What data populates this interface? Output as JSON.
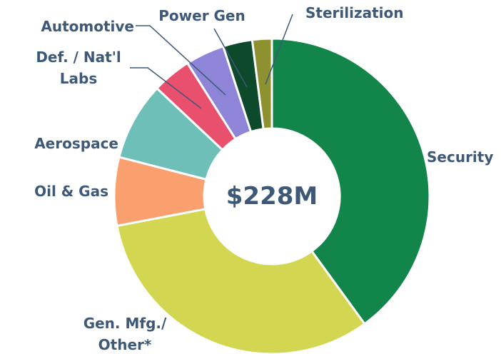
{
  "chart_data": {
    "type": "donut",
    "center_label": "$228M",
    "categories": [
      "Security",
      "Gen. Mfg./\nOther*",
      "Oil & Gas",
      "Aerospace",
      "Def. / Nat'l\nLabs",
      "Automotive",
      "Power Gen",
      "Sterilization"
    ],
    "values": [
      40,
      32,
      7,
      8,
      4,
      4,
      3,
      2
    ],
    "colors": [
      "#12854a",
      "#d2d650",
      "#f9a06e",
      "#6fbfb9",
      "#e8506e",
      "#8f85d8",
      "#0d4a2c",
      "#8e9130"
    ]
  }
}
